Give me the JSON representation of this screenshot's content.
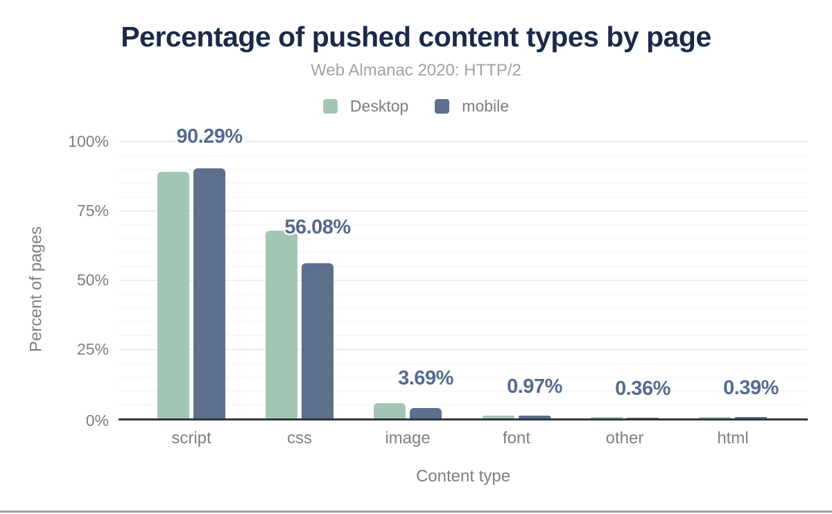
{
  "chart_data": {
    "type": "bar",
    "title": "Percentage of pushed content types by page",
    "subtitle": "Web Almanac 2020: HTTP/2",
    "xlabel": "Content type",
    "ylabel": "Percent of pages",
    "categories": [
      "script",
      "css",
      "image",
      "font",
      "other",
      "html"
    ],
    "series": [
      {
        "name": "Desktop",
        "color": "#a3c6b4",
        "values": [
          88.9,
          67.8,
          5.6,
          1.0,
          0.6,
          0.6
        ]
      },
      {
        "name": "mobile",
        "color": "#5e6f8d",
        "values": [
          90.29,
          56.08,
          3.69,
          0.97,
          0.36,
          0.39
        ]
      }
    ],
    "bar_labels": [
      "90.29%",
      "56.08%",
      "3.69%",
      "0.97%",
      "0.36%",
      "0.39%"
    ],
    "bar_labels_series": "mobile",
    "y_ticks": [
      "0%",
      "25%",
      "50%",
      "75%",
      "100%"
    ],
    "ylim": [
      0,
      100
    ],
    "grid": {
      "major_step": 25,
      "minor_step": 5,
      "visible": true
    },
    "legend_position": "top-center"
  },
  "colors": {
    "title": "#1b2a49",
    "subtitle": "#a2a2a2",
    "axis_text": "#7f7f7f",
    "desktop_bar": "#a3c6b4",
    "mobile_bar": "#5e6f8d",
    "value_label": "#566a8e",
    "axis_baseline": "#32353b",
    "major_gridline": "#e3e3e3",
    "minor_gridline": "#f4f4f4",
    "bottom_rule": "#9aa0a6"
  }
}
